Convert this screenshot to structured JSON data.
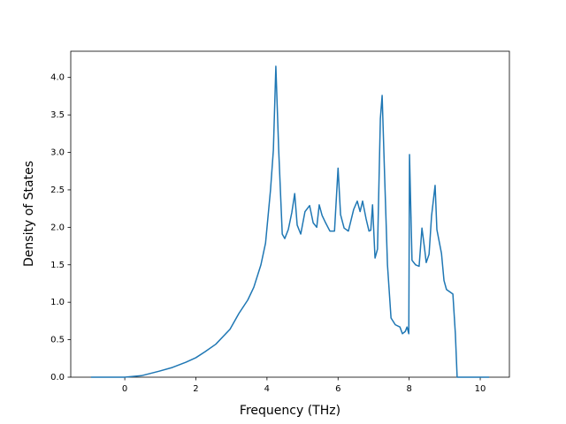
{
  "chart_data": {
    "type": "line",
    "xlabel": "Frequency (THz)",
    "ylabel": "Density of States",
    "x": [
      -0.95,
      0,
      0.47,
      0.97,
      1.34,
      1.72,
      2.0,
      2.26,
      2.56,
      2.96,
      3.21,
      3.46,
      3.63,
      3.83,
      3.96,
      4.1,
      4.18,
      4.25,
      4.33,
      4.43,
      4.5,
      4.6,
      4.7,
      4.78,
      4.85,
      4.95,
      5.07,
      5.2,
      5.3,
      5.4,
      5.47,
      5.55,
      5.65,
      5.77,
      5.9,
      6.0,
      6.07,
      6.17,
      6.29,
      6.44,
      6.54,
      6.62,
      6.69,
      6.79,
      6.87,
      6.92,
      6.97,
      7.04,
      7.11,
      7.19,
      7.24,
      7.31,
      7.39,
      7.49,
      7.61,
      7.74,
      7.81,
      7.89,
      7.94,
      7.99,
      8.01,
      8.08,
      8.18,
      8.28,
      8.36,
      8.43,
      8.48,
      8.56,
      8.63,
      8.73,
      8.78,
      8.91,
      8.98,
      9.05,
      9.23,
      9.3,
      9.35,
      10.25
    ],
    "series": [
      {
        "name": "DOS",
        "color": "#1f77b4",
        "values": [
          0,
          0,
          0.02,
          0.08,
          0.13,
          0.2,
          0.26,
          0.34,
          0.44,
          0.64,
          0.85,
          1.03,
          1.2,
          1.5,
          1.79,
          2.5,
          3.03,
          4.15,
          3.03,
          1.91,
          1.85,
          1.97,
          2.2,
          2.45,
          2.03,
          1.91,
          2.21,
          2.29,
          2.06,
          2.0,
          2.3,
          2.16,
          2.06,
          1.95,
          1.95,
          2.79,
          2.17,
          1.99,
          1.95,
          2.24,
          2.35,
          2.21,
          2.35,
          2.11,
          1.95,
          1.96,
          2.3,
          1.59,
          1.71,
          3.45,
          3.76,
          2.68,
          1.5,
          0.79,
          0.7,
          0.67,
          0.58,
          0.61,
          0.67,
          0.58,
          2.97,
          1.56,
          1.5,
          1.48,
          1.99,
          1.73,
          1.53,
          1.64,
          2.15,
          2.56,
          1.97,
          1.65,
          1.29,
          1.17,
          1.11,
          0.58,
          0,
          0
        ]
      }
    ],
    "xlim": [
      -1.52,
      10.82
    ],
    "ylim": [
      0,
      4.35
    ],
    "xticks": [
      0,
      2,
      4,
      6,
      8,
      10
    ],
    "yticks": [
      {
        "value": 0,
        "label": "0.0"
      },
      {
        "value": 0.5,
        "label": "0.5"
      },
      {
        "value": 1,
        "label": "1.0"
      },
      {
        "value": 1.5,
        "label": "1.5"
      },
      {
        "value": 2,
        "label": "2.0"
      },
      {
        "value": 2.5,
        "label": "2.5"
      },
      {
        "value": 3,
        "label": "3.0"
      },
      {
        "value": 3.5,
        "label": "3.5"
      },
      {
        "value": 4,
        "label": "4.0"
      }
    ],
    "grid": false
  }
}
